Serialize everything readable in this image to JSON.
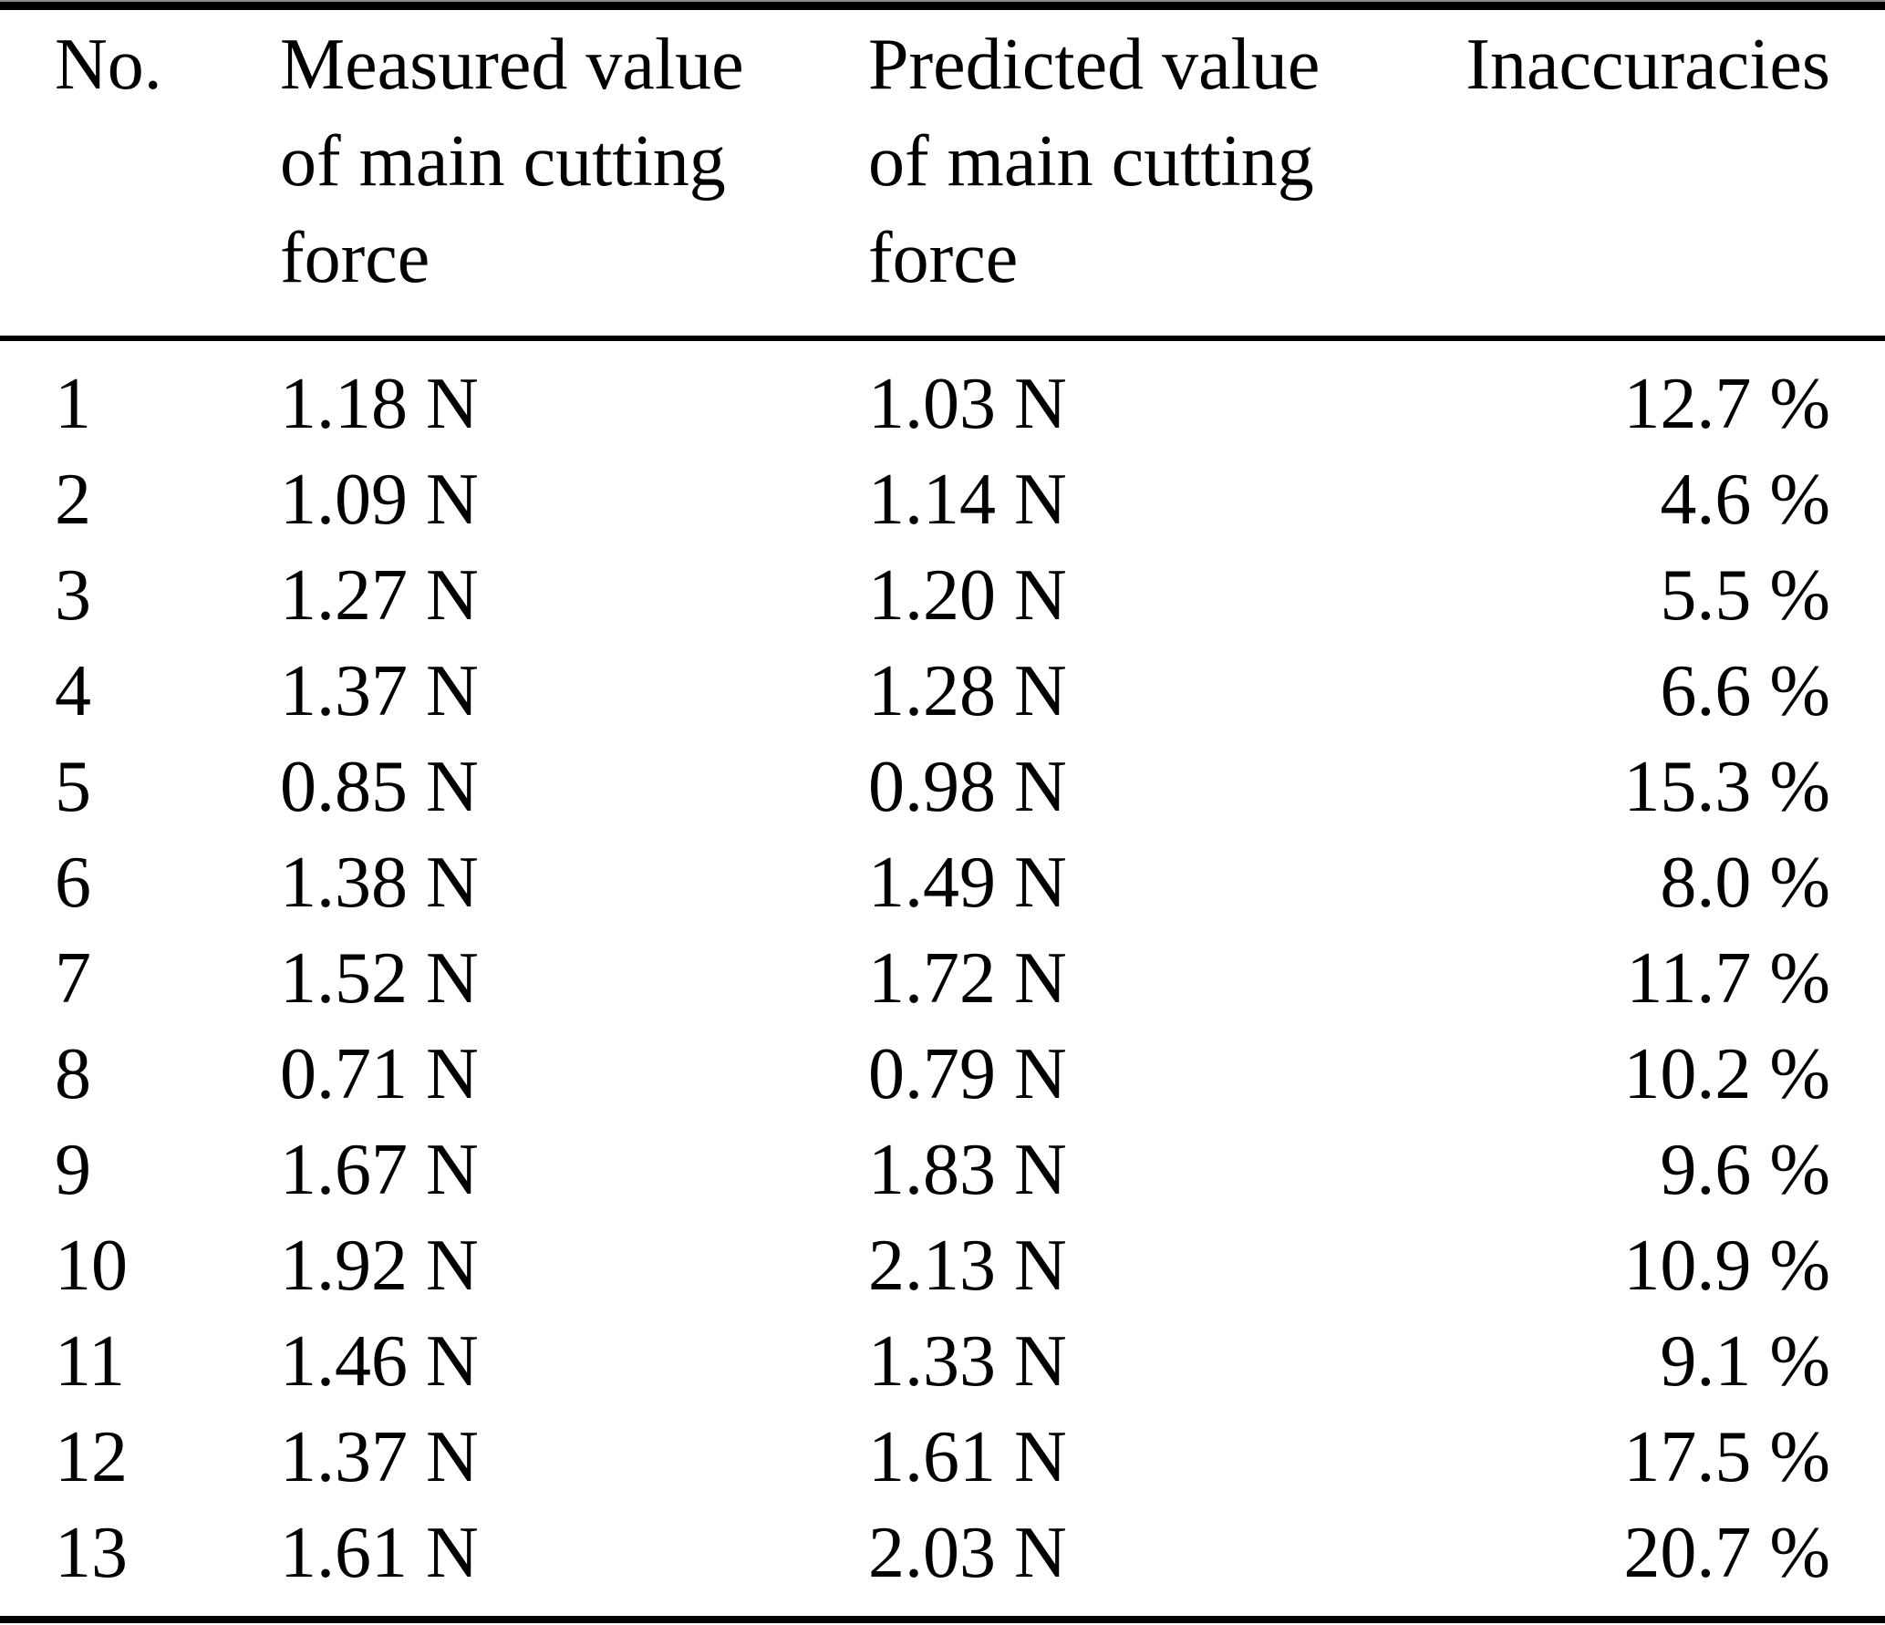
{
  "table": {
    "header": {
      "no": "No.",
      "measured": [
        "Measured value",
        "of main cutting",
        "force"
      ],
      "predicted": [
        "Predicted value",
        "of main cutting",
        "force"
      ],
      "inaccuracies": "Inaccuracies"
    },
    "rows": [
      {
        "no": "1",
        "measured": "1.18 N",
        "predicted": "1.03 N",
        "inaccuracy": "12.7 %"
      },
      {
        "no": "2",
        "measured": "1.09 N",
        "predicted": "1.14 N",
        "inaccuracy": "4.6 %"
      },
      {
        "no": "3",
        "measured": "1.27 N",
        "predicted": "1.20 N",
        "inaccuracy": "5.5 %"
      },
      {
        "no": "4",
        "measured": "1.37 N",
        "predicted": "1.28 N",
        "inaccuracy": "6.6 %"
      },
      {
        "no": "5",
        "measured": "0.85 N",
        "predicted": "0.98 N",
        "inaccuracy": "15.3 %"
      },
      {
        "no": "6",
        "measured": "1.38 N",
        "predicted": "1.49 N",
        "inaccuracy": "8.0 %"
      },
      {
        "no": "7",
        "measured": "1.52 N",
        "predicted": "1.72 N",
        "inaccuracy": "11.7 %"
      },
      {
        "no": "8",
        "measured": "0.71 N",
        "predicted": "0.79 N",
        "inaccuracy": "10.2 %"
      },
      {
        "no": "9",
        "measured": "1.67 N",
        "predicted": "1.83 N",
        "inaccuracy": "9.6 %"
      },
      {
        "no": "10",
        "measured": "1.92 N",
        "predicted": "2.13 N",
        "inaccuracy": "10.9 %"
      },
      {
        "no": "11",
        "measured": "1.46 N",
        "predicted": "1.33 N",
        "inaccuracy": "9.1 %"
      },
      {
        "no": "12",
        "measured": "1.37 N",
        "predicted": "1.61 N",
        "inaccuracy": "17.5 %"
      },
      {
        "no": "13",
        "measured": "1.61 N",
        "predicted": "2.03 N",
        "inaccuracy": "20.7 %"
      }
    ]
  },
  "colors": {
    "text": "#000000",
    "rule_thick": "#000000",
    "rule_thin": "#8a8a8a",
    "background": "#ffffff"
  }
}
